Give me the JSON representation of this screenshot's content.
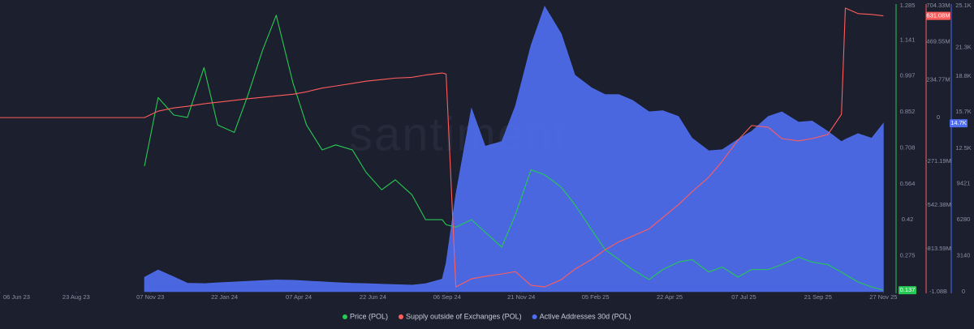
{
  "chart_data": {
    "type": "line",
    "watermark": "santiment",
    "x": [
      "2023-06-06",
      "2023-06-15",
      "2023-07-01",
      "2023-07-15",
      "2023-08-01",
      "2023-08-15",
      "2023-09-01",
      "2023-09-15",
      "2023-10-01",
      "2023-10-15",
      "2023-11-01",
      "2023-11-15",
      "2023-12-01",
      "2023-12-15",
      "2024-01-01",
      "2024-01-15",
      "2024-02-01",
      "2024-02-15",
      "2024-03-01",
      "2024-03-15",
      "2024-04-01",
      "2024-04-15",
      "2024-05-01",
      "2024-05-15",
      "2024-06-01",
      "2024-06-15",
      "2024-07-01",
      "2024-07-15",
      "2024-08-01",
      "2024-08-15",
      "2024-09-01",
      "2024-09-05",
      "2024-09-15",
      "2024-10-01",
      "2024-10-15",
      "2024-11-01",
      "2024-11-15",
      "2024-12-01",
      "2024-12-15",
      "2025-01-01",
      "2025-01-15",
      "2025-02-01",
      "2025-02-15",
      "2025-03-01",
      "2025-03-15",
      "2025-04-01",
      "2025-04-15",
      "2025-05-01",
      "2025-05-15",
      "2025-06-01",
      "2025-06-15",
      "2025-07-01",
      "2025-07-15",
      "2025-08-01",
      "2025-08-15",
      "2025-09-01",
      "2025-09-15",
      "2025-10-01",
      "2025-10-15",
      "2025-10-19",
      "2025-11-01",
      "2025-11-15",
      "2025-11-27"
    ],
    "xlim": [
      "2023-06-06",
      "2025-11-30"
    ],
    "xticks": [
      {
        "value": "2023-06-06",
        "label": "06 Jun 23"
      },
      {
        "value": "2023-08-23",
        "label": "23 Aug 23"
      },
      {
        "value": "2023-11-07",
        "label": "07 Nov 23"
      },
      {
        "value": "2024-01-22",
        "label": "22 Jan 24"
      },
      {
        "value": "2024-04-07",
        "label": "07 Apr 24"
      },
      {
        "value": "2024-06-22",
        "label": "22 Jun 24"
      },
      {
        "value": "2024-09-06",
        "label": "06 Sep 24"
      },
      {
        "value": "2024-11-21",
        "label": "21 Nov 24"
      },
      {
        "value": "2025-02-05",
        "label": "05 Feb 25"
      },
      {
        "value": "2025-04-22",
        "label": "22 Apr 25"
      },
      {
        "value": "2025-07-07",
        "label": "07 Jul 25"
      },
      {
        "value": "2025-09-21",
        "label": "21 Sep 25"
      },
      {
        "value": "2025-11-27",
        "label": "27 Nov 25"
      }
    ],
    "ylim": [
      0.131,
      1.285
    ],
    "yticks": [
      1.285,
      1.141,
      0.997,
      0.852,
      0.708,
      0.564,
      0.42,
      0.275
    ],
    "y2lim": [
      -1080000000,
      704330000
    ],
    "y2ticks": [
      {
        "value": 704330000,
        "label": "704.33M"
      },
      {
        "value": 469550000,
        "label": "469.55M"
      },
      {
        "value": 234770000,
        "label": "234.77M"
      },
      0,
      {
        "value": -271190000,
        "label": "-271.19M"
      },
      {
        "value": -542380000,
        "label": "-542.38M"
      },
      {
        "value": -813590000,
        "label": "-813.59M"
      },
      {
        "value": -1080000000,
        "label": "-1.08B"
      }
    ],
    "y3lim": [
      0,
      25100
    ],
    "y3ticks": [
      {
        "value": 25100,
        "label": "25.1K"
      },
      {
        "value": 21300,
        "label": "21.3K"
      },
      {
        "value": 18800,
        "label": "18.8K"
      },
      {
        "value": 15700,
        "label": "15.7K"
      },
      {
        "value": 12500,
        "label": "12.5K"
      },
      9421,
      6280,
      3140,
      0
    ],
    "series": [
      {
        "name": "Price (POL)",
        "color": "#26c953",
        "type": "line",
        "axis": "y",
        "values": [
          null,
          null,
          null,
          null,
          null,
          null,
          null,
          null,
          null,
          null,
          0.635,
          0.91,
          0.84,
          0.83,
          1.03,
          0.8,
          0.77,
          0.92,
          1.1,
          1.24,
          0.97,
          0.8,
          0.7,
          0.72,
          0.7,
          0.61,
          0.54,
          0.58,
          0.52,
          0.42,
          0.42,
          0.4,
          0.39,
          0.42,
          0.37,
          0.31,
          0.44,
          0.62,
          0.6,
          0.55,
          0.48,
          0.38,
          0.3,
          0.26,
          0.22,
          0.18,
          0.22,
          0.25,
          0.26,
          0.21,
          0.23,
          0.19,
          0.22,
          0.22,
          0.24,
          0.27,
          0.25,
          0.24,
          0.21,
          0.2,
          0.17,
          0.15,
          0.137
        ]
      },
      {
        "name": "Supply outside of Exchanges (POL)",
        "color": "#ff5c5c",
        "type": "line",
        "axis": "y2",
        "values": [
          0,
          0,
          0,
          0,
          0,
          0,
          0,
          0,
          0,
          0,
          0,
          40000000,
          60000000,
          70000000,
          86000000,
          95000000,
          107000000,
          117000000,
          126000000,
          135000000,
          145000000,
          160000000,
          183000000,
          196000000,
          212000000,
          226000000,
          236000000,
          245000000,
          250000000,
          264000000,
          277000000,
          270000000,
          -1050000000,
          -1000000000,
          -985000000,
          -970000000,
          -955000000,
          -1040000000,
          -1050000000,
          -1005000000,
          -940000000,
          -880000000,
          -820000000,
          -770000000,
          -735000000,
          -690000000,
          -620000000,
          -540000000,
          -460000000,
          -370000000,
          -270000000,
          -140000000,
          -49000000,
          -60000000,
          -130000000,
          -145000000,
          -130000000,
          -105000000,
          20000000,
          679000000,
          645000000,
          640000000,
          631080000
        ],
        "value_labels": [
          null,
          null,
          null,
          null,
          null,
          null,
          null,
          null,
          null,
          null,
          null,
          null,
          null,
          null,
          null,
          null,
          null,
          null,
          null,
          null,
          null,
          null,
          null,
          null,
          null,
          null,
          null,
          null,
          null,
          null,
          null,
          null,
          null,
          null,
          null,
          null,
          null,
          null,
          null,
          null,
          null,
          null,
          null,
          null,
          null,
          null,
          null,
          null,
          null,
          null,
          null,
          null,
          null,
          null,
          null,
          null,
          null,
          null,
          null,
          null,
          null,
          null,
          "631.08M"
        ]
      },
      {
        "name": "Active Addresses 30d (POL)",
        "color": "#4f6ef0",
        "type": "area",
        "axis": "y3",
        "values": [
          null,
          null,
          null,
          null,
          null,
          null,
          null,
          null,
          null,
          null,
          1270,
          1900,
          1300,
          750,
          710,
          780,
          850,
          920,
          980,
          1030,
          1000,
          940,
          870,
          800,
          740,
          710,
          660,
          620,
          580,
          700,
          1100,
          2500,
          8500,
          16000,
          12700,
          13100,
          16200,
          21500,
          24900,
          22500,
          18900,
          17800,
          17200,
          17200,
          16700,
          15700,
          15800,
          15300,
          13400,
          12300,
          12400,
          13300,
          14000,
          15300,
          15700,
          14800,
          14900,
          14000,
          13100,
          13300,
          13800,
          13400,
          14700
        ],
        "value_labels": [
          null,
          null,
          null,
          null,
          null,
          null,
          null,
          null,
          null,
          null,
          null,
          null,
          null,
          null,
          null,
          null,
          null,
          null,
          null,
          null,
          null,
          null,
          null,
          null,
          null,
          null,
          null,
          null,
          null,
          null,
          null,
          null,
          null,
          null,
          null,
          null,
          null,
          null,
          null,
          null,
          null,
          null,
          null,
          null,
          null,
          null,
          null,
          null,
          null,
          null,
          null,
          null,
          null,
          null,
          null,
          null,
          null,
          null,
          null,
          null,
          null,
          null,
          "14.7K"
        ]
      }
    ]
  }
}
